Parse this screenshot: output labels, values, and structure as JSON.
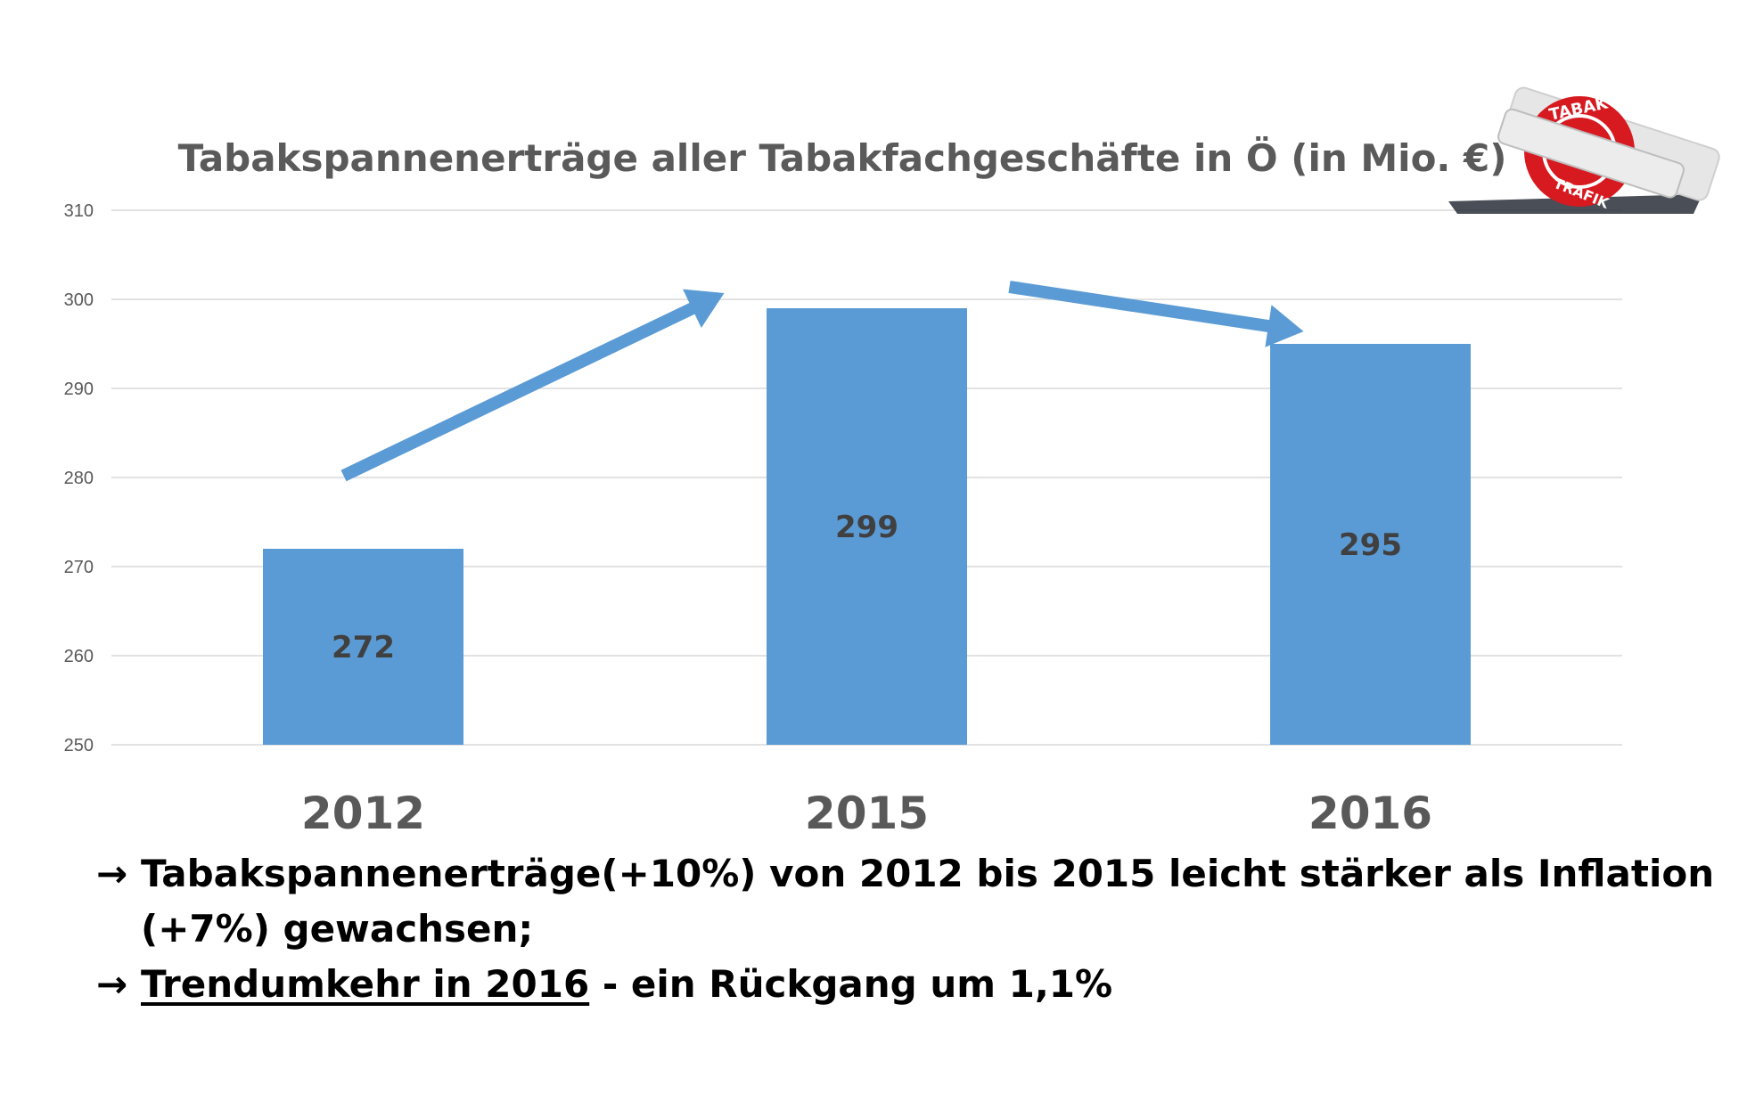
{
  "chart_data": {
    "type": "bar",
    "title": "Tabakspannenerträge aller Tabakfachgeschäfte in Ö (in Mio. €)",
    "categories": [
      "2012",
      "2015",
      "2016"
    ],
    "values": [
      272,
      299,
      295
    ],
    "data_labels": [
      "272",
      "299",
      "295"
    ],
    "ylim": [
      250,
      310
    ],
    "yticks": [
      "250",
      "260",
      "270",
      "280",
      "290",
      "300",
      "310"
    ],
    "grid": true,
    "bar_color": "#5b9bd5",
    "annotations": [
      {
        "type": "arrow",
        "direction": "up",
        "from": "2012",
        "to": "2015",
        "color": "#5b9bd5"
      },
      {
        "type": "arrow",
        "direction": "down",
        "from": "2015",
        "to": "2016",
        "color": "#5b9bd5"
      }
    ]
  },
  "logo": {
    "text": "TABAK TRAFIK",
    "icon": "tabak-trafik-logo",
    "color": "#e02020"
  },
  "notes": [
    {
      "arrow": "→",
      "text": "Tabakspannenerträge(+10%) von 2012 bis 2015 leicht stärker als Inflation (+7%) gewachsen;"
    },
    {
      "arrow": "→",
      "underlined": "Trendumkehr in 2016",
      "text": " - ein Rückgang um 1,1%"
    }
  ]
}
